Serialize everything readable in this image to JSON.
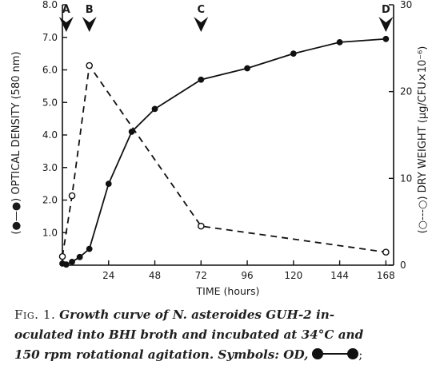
{
  "chart_data": {
    "type": "line",
    "x": [
      0,
      2,
      5,
      9,
      14,
      24,
      36,
      48,
      72,
      96,
      120,
      144,
      168
    ],
    "xlabel": "TIME (hours)",
    "xticks": [
      "24",
      "48",
      "72",
      "96",
      "120",
      "144",
      "168"
    ],
    "xlim": [
      0,
      172
    ],
    "ylabel_left": "(●—●) OPTICAL DENSITY (580 nm)",
    "ylabel_right": "(○---○) DRY WEIGHT (μg/CFU×10⁻⁶)",
    "yticks_left": [
      "1.0",
      "2.0",
      "3.0",
      "4.0",
      "5.0",
      "6.0",
      "7.0",
      "8.0"
    ],
    "yticks_right": [
      "0",
      "10",
      "20",
      "30"
    ],
    "ylim_left": [
      0,
      8
    ],
    "ylim_right": [
      0,
      30
    ],
    "series": [
      {
        "axis": "left",
        "style": "solid-filled",
        "points": [
          [
            0,
            0.05
          ],
          [
            2,
            0.02
          ],
          [
            5,
            0.1
          ],
          [
            9,
            0.25
          ],
          [
            14,
            0.5
          ],
          [
            24,
            2.5
          ],
          [
            36,
            4.1
          ],
          [
            48,
            4.8
          ],
          [
            72,
            5.7
          ],
          [
            96,
            6.05
          ],
          [
            120,
            6.5
          ],
          [
            144,
            6.85
          ],
          [
            168,
            6.95
          ]
        ]
      },
      {
        "axis": "right",
        "style": "dashed-open",
        "points": [
          [
            0,
            1
          ],
          [
            5,
            8
          ],
          [
            14,
            23
          ],
          [
            72,
            4.5
          ],
          [
            168,
            1.5
          ]
        ]
      }
    ],
    "markers": [
      {
        "label": "A",
        "x": 2
      },
      {
        "label": "B",
        "x": 14
      },
      {
        "label": "C",
        "x": 72
      },
      {
        "label": "D",
        "x": 168
      }
    ],
    "grid": false
  },
  "caption": {
    "fig_label": "Fig. 1.",
    "line1": "Growth curve of N. asteroides GUH-2 in-",
    "line2": "oculated into BHI broth and incubated at 34°C and",
    "line3": "150 rpm rotational agitation. Symbols: OD,",
    "line3_end": ";"
  }
}
